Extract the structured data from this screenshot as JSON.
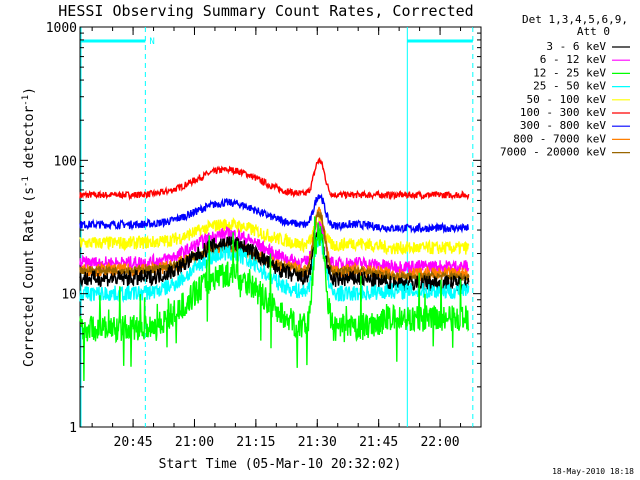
{
  "chart_data": {
    "type": "line",
    "title": "HESSI Observing Summary Count Rates, Corrected",
    "xlabel": "Start Time (05-Mar-10 20:32:02)",
    "ylabel": "Corrected Count Rate (s",
    "ylabel_sup": "-1",
    "ylabel_tail": " detector",
    "ylabel_end": ")",
    "y_scale": "log",
    "ylim": [
      1,
      1000
    ],
    "xlim": [
      "20:32:02",
      "22:10"
    ],
    "x_ticks": [
      "20:45",
      "21:00",
      "21:15",
      "21:30",
      "21:45",
      "22:00"
    ],
    "y_ticks": [
      "1",
      "10",
      "100",
      "1000"
    ],
    "grid": false,
    "legend_position": "top-right",
    "legend_header": [
      "Det 1,3,4,5,6,9,",
      "Att 0"
    ],
    "timestamp": "18-May-2010 18:18",
    "night_marker": "N",
    "night_periods": [
      [
        "20:32",
        "20:48"
      ],
      [
        "21:52",
        "22:08"
      ]
    ],
    "series": [
      {
        "name": "3 - 6 keV",
        "color": "#000000",
        "base": 13,
        "hump": 24,
        "peak": 28,
        "mid": 12,
        "end": 12,
        "noise": 0.06
      },
      {
        "name": "6 - 12 keV",
        "color": "#ff00ff",
        "base": 17,
        "hump": 28,
        "peak": 32,
        "mid": 16,
        "end": 16,
        "noise": 0.05
      },
      {
        "name": "12 - 25 keV",
        "color": "#00ff00",
        "base": 5.5,
        "hump": 14,
        "peak": 28,
        "mid": 5,
        "end": 6.5,
        "noise": 0.1
      },
      {
        "name": "25 - 50 keV",
        "color": "#00ffff",
        "base": 10,
        "hump": 20,
        "peak": 26,
        "mid": 10,
        "end": 10.5,
        "noise": 0.06
      },
      {
        "name": "50 - 100 keV",
        "color": "#ffff00",
        "base": 24,
        "hump": 33,
        "peak": 35,
        "mid": 21,
        "end": 22,
        "noise": 0.05
      },
      {
        "name": "100 - 300 keV",
        "color": "#ff0000",
        "base": 55,
        "hump": 85,
        "peak": 100,
        "mid": 55,
        "end": 55,
        "noise": 0.025
      },
      {
        "name": "300 - 800 keV",
        "color": "#0000ff",
        "base": 33,
        "hump": 48,
        "peak": 55,
        "mid": 31,
        "end": 31,
        "noise": 0.03
      },
      {
        "name": "800 - 7000 keV",
        "color": "#ff7f00",
        "base": 15,
        "hump": 22,
        "peak": 42,
        "mid": 13.5,
        "end": 14,
        "noise": 0.05
      },
      {
        "name": "7000 - 20000 keV",
        "color": "#996600",
        "base": 15,
        "hump": 22,
        "peak": 40,
        "mid": 13,
        "end": 13.5,
        "noise": 0.03
      }
    ]
  }
}
